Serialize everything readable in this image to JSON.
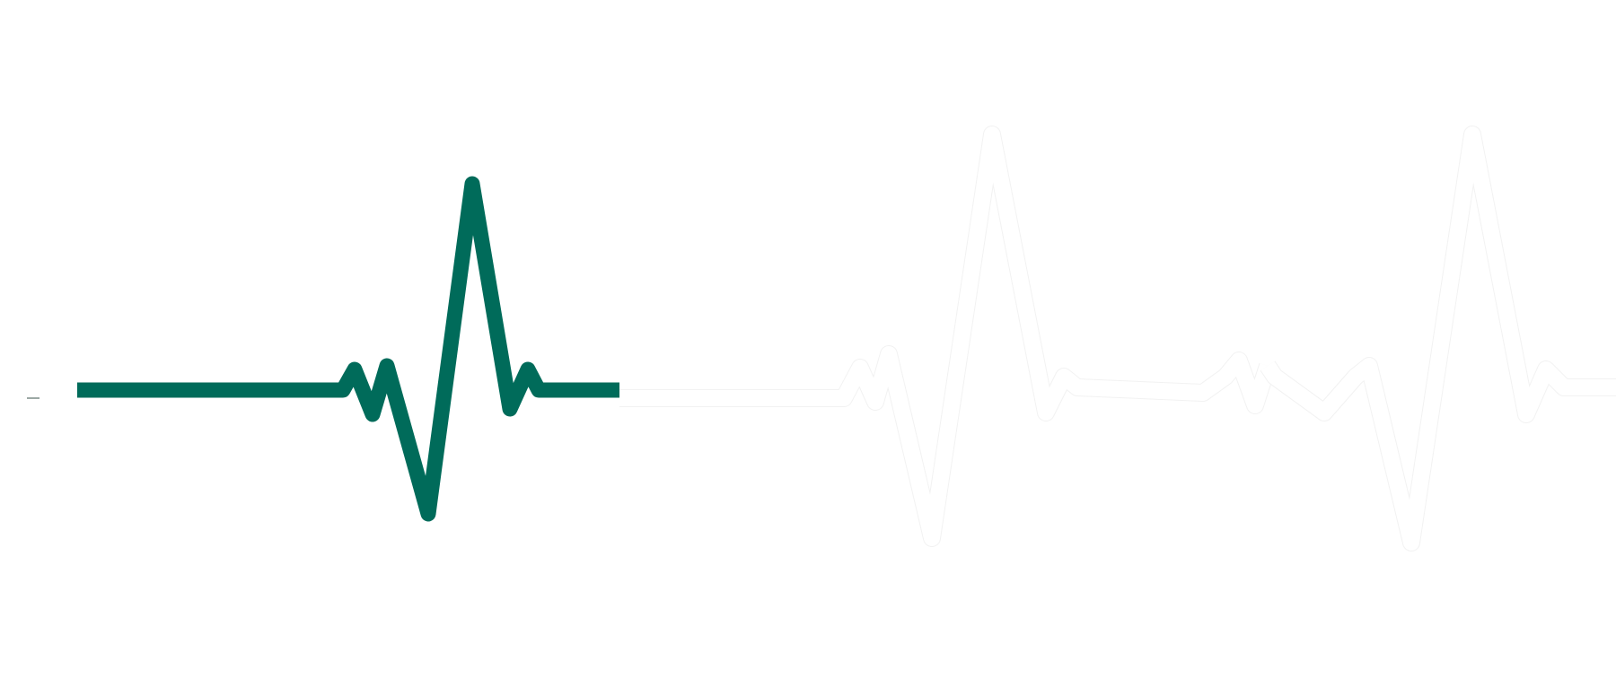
{
  "colors": {
    "background": "#ffffff",
    "active_trace": "#006b5a",
    "ghost_trace": "#ffffff",
    "ghost_outline": "#f2f2f2",
    "tick": "#7a8a86"
  },
  "graphic": {
    "icon": "heartbeat-ecg-line-icon",
    "description_visible_text": ""
  }
}
